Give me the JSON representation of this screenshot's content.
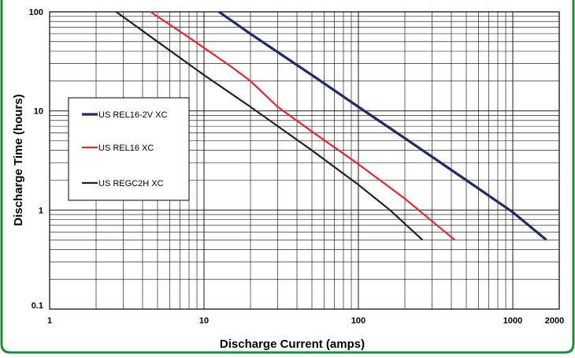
{
  "chart_data": {
    "type": "line",
    "title": "",
    "xlabel": "Discharge Current (amps)",
    "ylabel": "Discharge Time (hours)",
    "x_scale": "log",
    "y_scale": "log",
    "xlim": [
      1,
      2000
    ],
    "ylim": [
      0.1,
      100
    ],
    "x_tick_labels": [
      "1",
      "10",
      "100",
      "1000",
      "2000"
    ],
    "x_tick_values": [
      1,
      10,
      100,
      1000,
      2000
    ],
    "y_tick_labels": [
      "0.1",
      "1",
      "10",
      "100"
    ],
    "y_tick_values": [
      0.1,
      1,
      10,
      100
    ],
    "grid": true,
    "legend_position": "left-middle",
    "series": [
      {
        "name": "US REL16-2V XC",
        "color": "#1f2a6b",
        "x": [
          12.5,
          20,
          50,
          100,
          200,
          500,
          1000,
          1650
        ],
        "y": [
          100,
          60,
          23,
          11,
          5.3,
          2.0,
          0.95,
          0.5
        ]
      },
      {
        "name": "US REL16  XC",
        "color": "#e8262b",
        "x": [
          4.5,
          8,
          15,
          20,
          30,
          50,
          100,
          200,
          420
        ],
        "y": [
          100,
          55,
          28,
          20,
          11,
          6.2,
          2.9,
          1.3,
          0.5
        ]
      },
      {
        "name": "US REGC2H XC",
        "color": "#222222",
        "x": [
          2.7,
          5,
          10,
          20,
          50,
          100,
          160,
          260
        ],
        "y": [
          100,
          50,
          23,
          11,
          4.0,
          1.8,
          1.0,
          0.5
        ]
      }
    ]
  }
}
